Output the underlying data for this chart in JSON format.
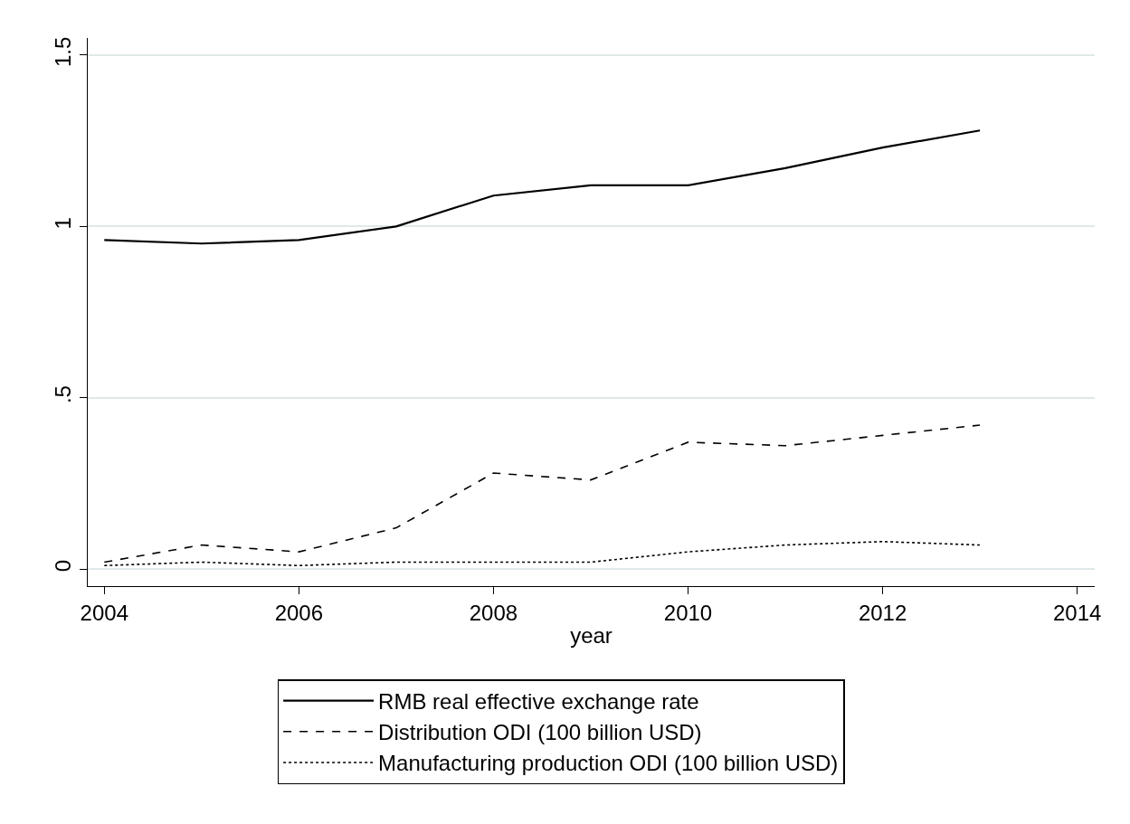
{
  "chart_data": {
    "type": "line",
    "xlabel": "year",
    "x": [
      2004,
      2005,
      2006,
      2007,
      2008,
      2009,
      2010,
      2011,
      2012,
      2013
    ],
    "series": [
      {
        "name": "RMB real effective exchange rate",
        "color": "#000000",
        "line_style": "solid",
        "values": [
          0.96,
          0.95,
          0.96,
          1.0,
          1.09,
          1.12,
          1.12,
          1.17,
          1.23,
          1.28
        ]
      },
      {
        "name": "Distribution ODI (100 billion USD)",
        "color": "#000000",
        "line_style": "dashed",
        "values": [
          0.02,
          0.07,
          0.05,
          0.12,
          0.28,
          0.26,
          0.37,
          0.36,
          0.39,
          0.42
        ]
      },
      {
        "name": "Manufacturing production ODI (100 billion USD)",
        "color": "#000000",
        "line_style": "dotted",
        "values": [
          0.01,
          0.02,
          0.01,
          0.02,
          0.02,
          0.02,
          0.05,
          0.07,
          0.08,
          0.07
        ]
      }
    ],
    "xlim": [
      2003.83,
      2014.18
    ],
    "xticks": [
      2004,
      2006,
      2008,
      2010,
      2012,
      2014
    ],
    "ylim": [
      -0.05,
      1.55
    ],
    "yticks": [
      0,
      {
        "value": 0.5,
        "label": ".5"
      },
      1,
      1.5
    ],
    "grid": "y",
    "legend": "bottom",
    "marker": "none"
  }
}
